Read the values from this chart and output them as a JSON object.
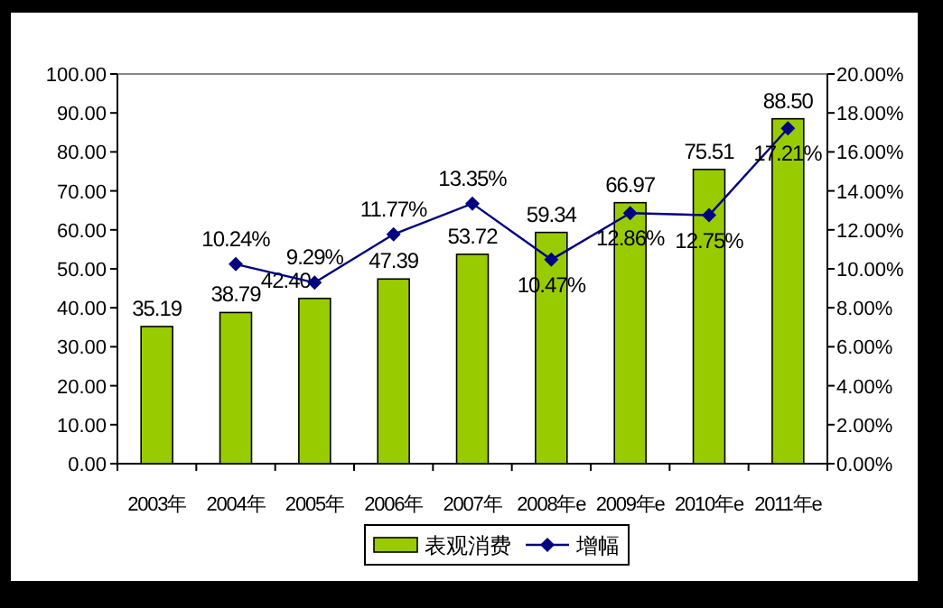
{
  "chart_data": {
    "type": "bar",
    "categories": [
      "2003年",
      "2004年",
      "2005年",
      "2006年",
      "2007年",
      "2008年e",
      "2009年e",
      "2010年e",
      "2011年e"
    ],
    "series": [
      {
        "name": "表观消费",
        "color": "#99cc00",
        "values": [
          35.19,
          38.79,
          42.4,
          47.39,
          53.72,
          59.34,
          66.97,
          75.51,
          88.5
        ],
        "value_labels": [
          "35.19",
          "38.79",
          "42.40",
          "47.39",
          "53.72",
          "59.34",
          "66.97",
          "75.51",
          "88.50"
        ]
      },
      {
        "name": "增幅",
        "type": "line",
        "axis": "y2",
        "color": "#000080",
        "marker": "diamond",
        "values": [
          null,
          10.24,
          9.29,
          11.77,
          13.35,
          10.47,
          12.86,
          12.75,
          17.21
        ],
        "value_labels": [
          null,
          "10.24%",
          "9.29%",
          "11.77%",
          "13.35%",
          "10.47%",
          "12.86%",
          "12.75%",
          "17.21%"
        ]
      }
    ],
    "ylim": [
      0,
      100
    ],
    "yticks": [
      {
        "value": 0,
        "label": "0.00"
      },
      {
        "value": 10,
        "label": "10.00"
      },
      {
        "value": 20,
        "label": "20.00"
      },
      {
        "value": 30,
        "label": "30.00"
      },
      {
        "value": 40,
        "label": "40.00"
      },
      {
        "value": 50,
        "label": "50.00"
      },
      {
        "value": 60,
        "label": "60.00"
      },
      {
        "value": 70,
        "label": "70.00"
      },
      {
        "value": 80,
        "label": "80.00"
      },
      {
        "value": 90,
        "label": "90.00"
      },
      {
        "value": 100,
        "label": "100.00"
      }
    ],
    "y2lim": [
      0,
      20
    ],
    "y2ticks": [
      {
        "value": 0,
        "label": "0.00%"
      },
      {
        "value": 2,
        "label": "2.00%"
      },
      {
        "value": 4,
        "label": "4.00%"
      },
      {
        "value": 6,
        "label": "6.00%"
      },
      {
        "value": 8,
        "label": "8.00%"
      },
      {
        "value": 10,
        "label": "10.00%"
      },
      {
        "value": 12,
        "label": "12.00%"
      },
      {
        "value": 14,
        "label": "14.00%"
      },
      {
        "value": 16,
        "label": "16.00%"
      },
      {
        "value": 18,
        "label": "18.00%"
      },
      {
        "value": 20,
        "label": "20.00%"
      }
    ],
    "grid": false,
    "legend": "bottom"
  }
}
